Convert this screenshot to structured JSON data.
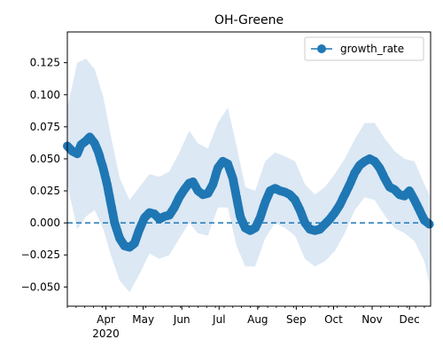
{
  "chart_data": {
    "type": "line",
    "title": "OH-Greene",
    "xlabel": "",
    "ylabel": "",
    "x_tick_labels": [
      "Apr",
      "May",
      "Jun",
      "Jul",
      "Aug",
      "Sep",
      "Oct",
      "Nov",
      "Dec"
    ],
    "x_year_label": "2020",
    "y_ticks": [
      -0.05,
      -0.025,
      0.0,
      0.025,
      0.05,
      0.075,
      0.1,
      0.125
    ],
    "y_tick_labels": [
      "−0.050",
      "−0.025",
      "0.000",
      "0.025",
      "0.050",
      "0.075",
      "0.100",
      "0.125"
    ],
    "xlim": [
      "2020-03-01",
      "2020-12-18"
    ],
    "ylim": [
      -0.065,
      0.149
    ],
    "grid": false,
    "legend": {
      "position": "top-right",
      "label": "growth_rate"
    },
    "reference_line": {
      "y": 0.0,
      "style": "dashed"
    },
    "colors": {
      "series": "#1f77b4",
      "band": "#dce8f4"
    },
    "series": [
      {
        "name": "growth_rate",
        "points": [
          [
            "2020-03-01",
            0.06
          ],
          [
            "2020-03-05",
            0.056
          ],
          [
            "2020-03-09",
            0.054
          ],
          [
            "2020-03-12",
            0.061
          ],
          [
            "2020-03-16",
            0.064
          ],
          [
            "2020-03-19",
            0.067
          ],
          [
            "2020-03-23",
            0.062
          ],
          [
            "2020-03-26",
            0.055
          ],
          [
            "2020-03-30",
            0.042
          ],
          [
            "2020-04-02",
            0.03
          ],
          [
            "2020-04-05",
            0.015
          ],
          [
            "2020-04-08",
            0.0
          ],
          [
            "2020-04-12",
            -0.012
          ],
          [
            "2020-04-16",
            -0.018
          ],
          [
            "2020-04-20",
            -0.019
          ],
          [
            "2020-04-24",
            -0.016
          ],
          [
            "2020-04-28",
            -0.005
          ],
          [
            "2020-05-02",
            0.004
          ],
          [
            "2020-05-06",
            0.008
          ],
          [
            "2020-05-10",
            0.007
          ],
          [
            "2020-05-14",
            0.003
          ],
          [
            "2020-05-18",
            0.005
          ],
          [
            "2020-05-22",
            0.006
          ],
          [
            "2020-05-26",
            0.012
          ],
          [
            "2020-05-30",
            0.02
          ],
          [
            "2020-06-03",
            0.026
          ],
          [
            "2020-06-07",
            0.031
          ],
          [
            "2020-06-10",
            0.032
          ],
          [
            "2020-06-14",
            0.025
          ],
          [
            "2020-06-18",
            0.022
          ],
          [
            "2020-06-22",
            0.023
          ],
          [
            "2020-06-26",
            0.03
          ],
          [
            "2020-06-30",
            0.043
          ],
          [
            "2020-07-04",
            0.048
          ],
          [
            "2020-07-08",
            0.046
          ],
          [
            "2020-07-12",
            0.035
          ],
          [
            "2020-07-15",
            0.02
          ],
          [
            "2020-07-18",
            0.005
          ],
          [
            "2020-07-22",
            -0.004
          ],
          [
            "2020-07-26",
            -0.006
          ],
          [
            "2020-07-30",
            -0.004
          ],
          [
            "2020-08-03",
            0.004
          ],
          [
            "2020-08-07",
            0.016
          ],
          [
            "2020-08-11",
            0.025
          ],
          [
            "2020-08-15",
            0.027
          ],
          [
            "2020-08-19",
            0.025
          ],
          [
            "2020-08-23",
            0.024
          ],
          [
            "2020-08-27",
            0.022
          ],
          [
            "2020-08-31",
            0.018
          ],
          [
            "2020-09-04",
            0.01
          ],
          [
            "2020-09-08",
            0.0
          ],
          [
            "2020-09-12",
            -0.005
          ],
          [
            "2020-09-16",
            -0.006
          ],
          [
            "2020-09-20",
            -0.005
          ],
          [
            "2020-09-24",
            -0.001
          ],
          [
            "2020-09-28",
            0.003
          ],
          [
            "2020-10-02",
            0.008
          ],
          [
            "2020-10-06",
            0.014
          ],
          [
            "2020-10-10",
            0.022
          ],
          [
            "2020-10-14",
            0.03
          ],
          [
            "2020-10-18",
            0.039
          ],
          [
            "2020-10-22",
            0.045
          ],
          [
            "2020-10-26",
            0.048
          ],
          [
            "2020-10-30",
            0.05
          ],
          [
            "2020-11-03",
            0.048
          ],
          [
            "2020-11-07",
            0.043
          ],
          [
            "2020-11-11",
            0.035
          ],
          [
            "2020-11-15",
            0.028
          ],
          [
            "2020-11-19",
            0.026
          ],
          [
            "2020-11-23",
            0.022
          ],
          [
            "2020-11-27",
            0.021
          ],
          [
            "2020-12-01",
            0.025
          ],
          [
            "2020-12-05",
            0.018
          ],
          [
            "2020-12-09",
            0.01
          ],
          [
            "2020-12-13",
            0.002
          ],
          [
            "2020-12-17",
            -0.001
          ]
        ],
        "band_upper": [
          [
            "2020-03-01",
            0.09
          ],
          [
            "2020-03-09",
            0.125
          ],
          [
            "2020-03-16",
            0.128
          ],
          [
            "2020-03-23",
            0.12
          ],
          [
            "2020-03-30",
            0.098
          ],
          [
            "2020-04-05",
            0.068
          ],
          [
            "2020-04-12",
            0.035
          ],
          [
            "2020-04-20",
            0.018
          ],
          [
            "2020-04-28",
            0.028
          ],
          [
            "2020-05-06",
            0.038
          ],
          [
            "2020-05-14",
            0.036
          ],
          [
            "2020-05-22",
            0.04
          ],
          [
            "2020-05-30",
            0.055
          ],
          [
            "2020-06-07",
            0.072
          ],
          [
            "2020-06-14",
            0.062
          ],
          [
            "2020-06-22",
            0.058
          ],
          [
            "2020-06-30",
            0.078
          ],
          [
            "2020-07-08",
            0.09
          ],
          [
            "2020-07-15",
            0.06
          ],
          [
            "2020-07-22",
            0.028
          ],
          [
            "2020-07-30",
            0.025
          ],
          [
            "2020-08-07",
            0.048
          ],
          [
            "2020-08-15",
            0.055
          ],
          [
            "2020-08-23",
            0.052
          ],
          [
            "2020-08-31",
            0.048
          ],
          [
            "2020-09-08",
            0.03
          ],
          [
            "2020-09-16",
            0.022
          ],
          [
            "2020-09-24",
            0.028
          ],
          [
            "2020-10-02",
            0.038
          ],
          [
            "2020-10-10",
            0.05
          ],
          [
            "2020-10-18",
            0.065
          ],
          [
            "2020-10-26",
            0.078
          ],
          [
            "2020-11-03",
            0.078
          ],
          [
            "2020-11-11",
            0.066
          ],
          [
            "2020-11-19",
            0.056
          ],
          [
            "2020-11-27",
            0.05
          ],
          [
            "2020-12-05",
            0.048
          ],
          [
            "2020-12-13",
            0.03
          ],
          [
            "2020-12-17",
            0.022
          ]
        ],
        "band_lower": [
          [
            "2020-03-01",
            0.03
          ],
          [
            "2020-03-09",
            -0.005
          ],
          [
            "2020-03-16",
            0.005
          ],
          [
            "2020-03-23",
            0.01
          ],
          [
            "2020-03-30",
            -0.005
          ],
          [
            "2020-04-05",
            -0.025
          ],
          [
            "2020-04-12",
            -0.045
          ],
          [
            "2020-04-20",
            -0.054
          ],
          [
            "2020-04-28",
            -0.04
          ],
          [
            "2020-05-06",
            -0.024
          ],
          [
            "2020-05-14",
            -0.028
          ],
          [
            "2020-05-22",
            -0.025
          ],
          [
            "2020-05-30",
            -0.012
          ],
          [
            "2020-06-07",
            0.0
          ],
          [
            "2020-06-14",
            -0.008
          ],
          [
            "2020-06-22",
            -0.01
          ],
          [
            "2020-06-30",
            0.012
          ],
          [
            "2020-07-08",
            0.012
          ],
          [
            "2020-07-15",
            -0.018
          ],
          [
            "2020-07-22",
            -0.034
          ],
          [
            "2020-07-30",
            -0.034
          ],
          [
            "2020-08-07",
            -0.012
          ],
          [
            "2020-08-15",
            0.0
          ],
          [
            "2020-08-23",
            -0.004
          ],
          [
            "2020-08-31",
            -0.01
          ],
          [
            "2020-09-08",
            -0.028
          ],
          [
            "2020-09-16",
            -0.034
          ],
          [
            "2020-09-24",
            -0.03
          ],
          [
            "2020-10-02",
            -0.022
          ],
          [
            "2020-10-10",
            -0.008
          ],
          [
            "2020-10-18",
            0.01
          ],
          [
            "2020-10-26",
            0.02
          ],
          [
            "2020-11-03",
            0.018
          ],
          [
            "2020-11-11",
            0.006
          ],
          [
            "2020-11-19",
            -0.004
          ],
          [
            "2020-11-27",
            -0.008
          ],
          [
            "2020-12-05",
            -0.014
          ],
          [
            "2020-12-13",
            -0.03
          ],
          [
            "2020-12-17",
            -0.048
          ]
        ]
      }
    ]
  }
}
